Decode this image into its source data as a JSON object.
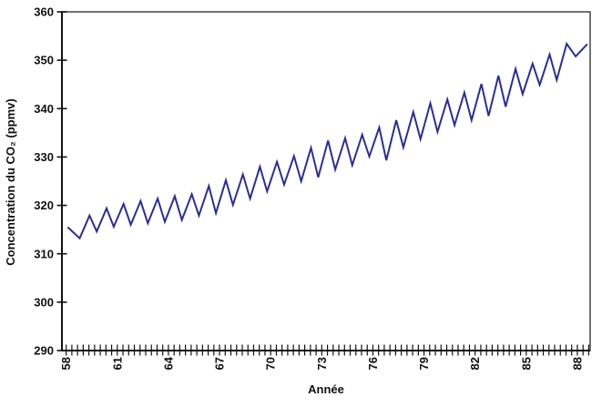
{
  "chart_data": {
    "type": "line",
    "title": "",
    "xlabel": "Année",
    "ylabel": "Concentration du CO₂ (ppmv)",
    "grid": "off",
    "legend": "none",
    "line_color": "#2d2d96",
    "axis_color": "#111111",
    "x_axis": {
      "xlim_years": [
        1957.75,
        1988.75
      ],
      "minor_tick_step_years": 0.3333,
      "labeled_ticks": [
        {
          "label": "58",
          "year": 1958
        },
        {
          "label": "61",
          "year": 1961
        },
        {
          "label": "64",
          "year": 1964
        },
        {
          "label": "67",
          "year": 1967
        },
        {
          "label": "70",
          "year": 1970
        },
        {
          "label": "73",
          "year": 1973
        },
        {
          "label": "76",
          "year": 1976
        },
        {
          "label": "79",
          "year": 1979
        },
        {
          "label": "82",
          "year": 1982
        },
        {
          "label": "85",
          "year": 1985
        },
        {
          "label": "88",
          "year": 1988
        }
      ]
    },
    "y_axis": {
      "ylim": [
        290,
        360
      ],
      "ticks": [
        290,
        300,
        310,
        320,
        330,
        340,
        350,
        360
      ]
    },
    "series": [
      {
        "points": [
          [
            1958.12,
            315.4
          ],
          [
            1958.79,
            313.2
          ],
          [
            1959.37,
            317.9
          ],
          [
            1959.79,
            314.6
          ],
          [
            1960.37,
            319.4
          ],
          [
            1960.79,
            315.6
          ],
          [
            1961.37,
            320.3
          ],
          [
            1961.79,
            316.0
          ],
          [
            1962.37,
            320.9
          ],
          [
            1962.79,
            316.3
          ],
          [
            1963.37,
            321.4
          ],
          [
            1963.79,
            316.6
          ],
          [
            1964.37,
            321.9
          ],
          [
            1964.79,
            317.0
          ],
          [
            1965.37,
            322.3
          ],
          [
            1965.79,
            317.9
          ],
          [
            1966.37,
            324.0
          ],
          [
            1966.79,
            318.4
          ],
          [
            1967.37,
            325.2
          ],
          [
            1967.79,
            320.1
          ],
          [
            1968.37,
            326.4
          ],
          [
            1968.79,
            321.4
          ],
          [
            1969.37,
            328.0
          ],
          [
            1969.79,
            322.9
          ],
          [
            1970.37,
            329.0
          ],
          [
            1970.79,
            324.3
          ],
          [
            1971.37,
            330.2
          ],
          [
            1971.79,
            325.0
          ],
          [
            1972.37,
            331.9
          ],
          [
            1972.79,
            325.8
          ],
          [
            1973.37,
            333.4
          ],
          [
            1973.79,
            327.4
          ],
          [
            1974.37,
            333.9
          ],
          [
            1974.79,
            328.3
          ],
          [
            1975.37,
            334.6
          ],
          [
            1975.79,
            330.1
          ],
          [
            1976.37,
            336.1
          ],
          [
            1976.79,
            329.3
          ],
          [
            1977.37,
            337.6
          ],
          [
            1977.79,
            332.0
          ],
          [
            1978.37,
            339.3
          ],
          [
            1978.79,
            333.7
          ],
          [
            1979.37,
            341.1
          ],
          [
            1979.79,
            335.2
          ],
          [
            1980.37,
            341.9
          ],
          [
            1980.79,
            336.6
          ],
          [
            1981.37,
            343.3
          ],
          [
            1981.79,
            337.6
          ],
          [
            1982.37,
            345.1
          ],
          [
            1982.79,
            338.5
          ],
          [
            1983.37,
            346.8
          ],
          [
            1983.79,
            340.4
          ],
          [
            1984.37,
            348.2
          ],
          [
            1984.79,
            343.0
          ],
          [
            1985.37,
            349.3
          ],
          [
            1985.79,
            344.9
          ],
          [
            1986.37,
            351.2
          ],
          [
            1986.79,
            345.9
          ],
          [
            1987.37,
            353.4
          ],
          [
            1987.9,
            350.8
          ],
          [
            1988.55,
            353.2
          ]
        ]
      }
    ]
  }
}
